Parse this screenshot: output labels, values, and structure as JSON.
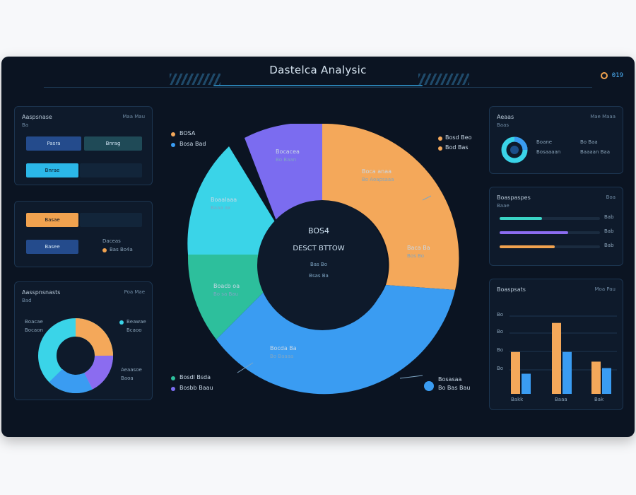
{
  "header": {
    "title": "Dastelca Analysic",
    "icon_text": "019"
  },
  "left_panels": [
    {
      "title": "Aaspsnase",
      "sub": "Ba",
      "meta": "Maa Mau",
      "chips": [
        {
          "label": "Pasra",
          "color": "#244b8c"
        },
        {
          "label": "Bnrag",
          "color": "#1f4a57"
        },
        {
          "label": "Bnrae",
          "color": "#2bb7e8"
        }
      ]
    },
    {
      "title": "",
      "sub": "",
      "meta": "",
      "chips": [
        {
          "label": "Basae",
          "color": "#f0a24f"
        },
        {
          "label": "Basee",
          "color": "#244b8c"
        }
      ],
      "tags": [
        "Daceas",
        "Bas Bo4a"
      ]
    },
    {
      "title": "Aasspnsnasts",
      "sub": "Bad",
      "meta": "Poa Mae",
      "legend": [
        "Boacae",
        "Bocaon",
        "Beawae",
        "Bcaoo",
        "Aeaasoe",
        "Baoa"
      ]
    }
  ],
  "donut": {
    "center_title": "BOS4",
    "center_label": "DESCT BTTOW",
    "center_sub1": "Bas Bo",
    "center_sub2": "Bsas Ba",
    "legend_left": [
      "BOSA",
      "Bosa Bad"
    ],
    "callouts": [
      {
        "label": "Bocacea",
        "sub": "Bo Baan"
      },
      {
        "label": "Boca anaa",
        "sub": "Bo Aoapsaaa"
      },
      {
        "label": "Boaalaaa",
        "sub": "Baaa ax"
      },
      {
        "label": "Baca Ba",
        "sub": "Bos Bo"
      },
      {
        "label": "Boacb oa",
        "sub": "Bo sa Bau"
      },
      {
        "label": "Bocda Ba",
        "sub": "Bo Baaaa"
      }
    ],
    "bottom_left": [
      "Bosdl Bsda",
      "Bosbb Baau"
    ],
    "bottom_right": [
      "Bosasaa",
      "Bo Bas Bau"
    ],
    "top_right": [
      "Bosd Beo",
      "Bod Bas"
    ]
  },
  "right_panels": [
    {
      "title": "Aeaas",
      "sub": "Baas",
      "meta": "Mae Maaa",
      "items": [
        "Boane",
        "Bosaaaan",
        "Bo Baa",
        "Baaaan Baa"
      ]
    },
    {
      "title": "Boaspaspes",
      "sub": "Baae",
      "meta": "Boa",
      "bars": [
        {
          "value": 0.42,
          "color": "#3ad4c6",
          "label": "Bab"
        },
        {
          "value": 0.68,
          "color": "#8b6cf0",
          "label": "Bab"
        },
        {
          "value": 0.55,
          "color": "#f0a24f",
          "label": "Bab"
        }
      ]
    },
    {
      "title": "Boaspsats",
      "meta": "Moa Pau",
      "ticks": [
        "Bo",
        "Bo",
        "Bo",
        "Bo"
      ],
      "xlabels": [
        "Bakk",
        "Baaa",
        "Bak"
      ],
      "bars": [
        {
          "a": 0.52,
          "b": 0.25
        },
        {
          "a": 0.88,
          "b": 0.52
        },
        {
          "a": 0.4,
          "b": 0.32
        }
      ]
    }
  ],
  "colors": {
    "cyan": "#3ad4e8",
    "teal": "#2dbf9c",
    "purple": "#7b6cf0",
    "orange": "#f4a85a",
    "blue": "#3a9cf2"
  }
}
